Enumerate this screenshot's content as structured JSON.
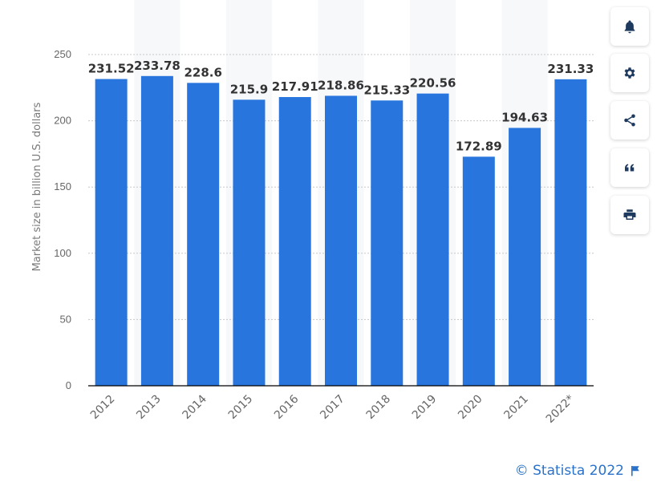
{
  "chart_data": {
    "type": "bar",
    "categories": [
      "2012",
      "2013",
      "2014",
      "2015",
      "2016",
      "2017",
      "2018",
      "2019",
      "2020",
      "2021",
      "2022*"
    ],
    "values": [
      231.52,
      233.78,
      228.6,
      215.9,
      217.91,
      218.86,
      215.33,
      220.56,
      172.89,
      194.63,
      231.33
    ],
    "value_labels": [
      "231.52",
      "233.78",
      "228.6",
      "215.9",
      "217.91",
      "218.86",
      "215.33",
      "220.56",
      "172.89",
      "194.63",
      "231.33"
    ],
    "ylabel": "Market size in billion U.S. dollars",
    "xlabel": "",
    "ylim": [
      0,
      250
    ],
    "yticks": [
      "0",
      "50",
      "100",
      "150",
      "200",
      "250"
    ],
    "grid": true,
    "bar_color": "#2876dd"
  },
  "toolbar": {
    "buttons": [
      {
        "name": "notification",
        "icon": "bell-icon"
      },
      {
        "name": "settings",
        "icon": "gear-icon"
      },
      {
        "name": "share",
        "icon": "share-icon"
      },
      {
        "name": "cite",
        "icon": "quote-icon"
      },
      {
        "name": "print",
        "icon": "printer-icon"
      }
    ]
  },
  "footer": {
    "copyright": "© Statista 2022",
    "icon": "flag-icon"
  },
  "colors": {
    "accent": "#2a72c9",
    "icon": "#1f3a5f"
  }
}
